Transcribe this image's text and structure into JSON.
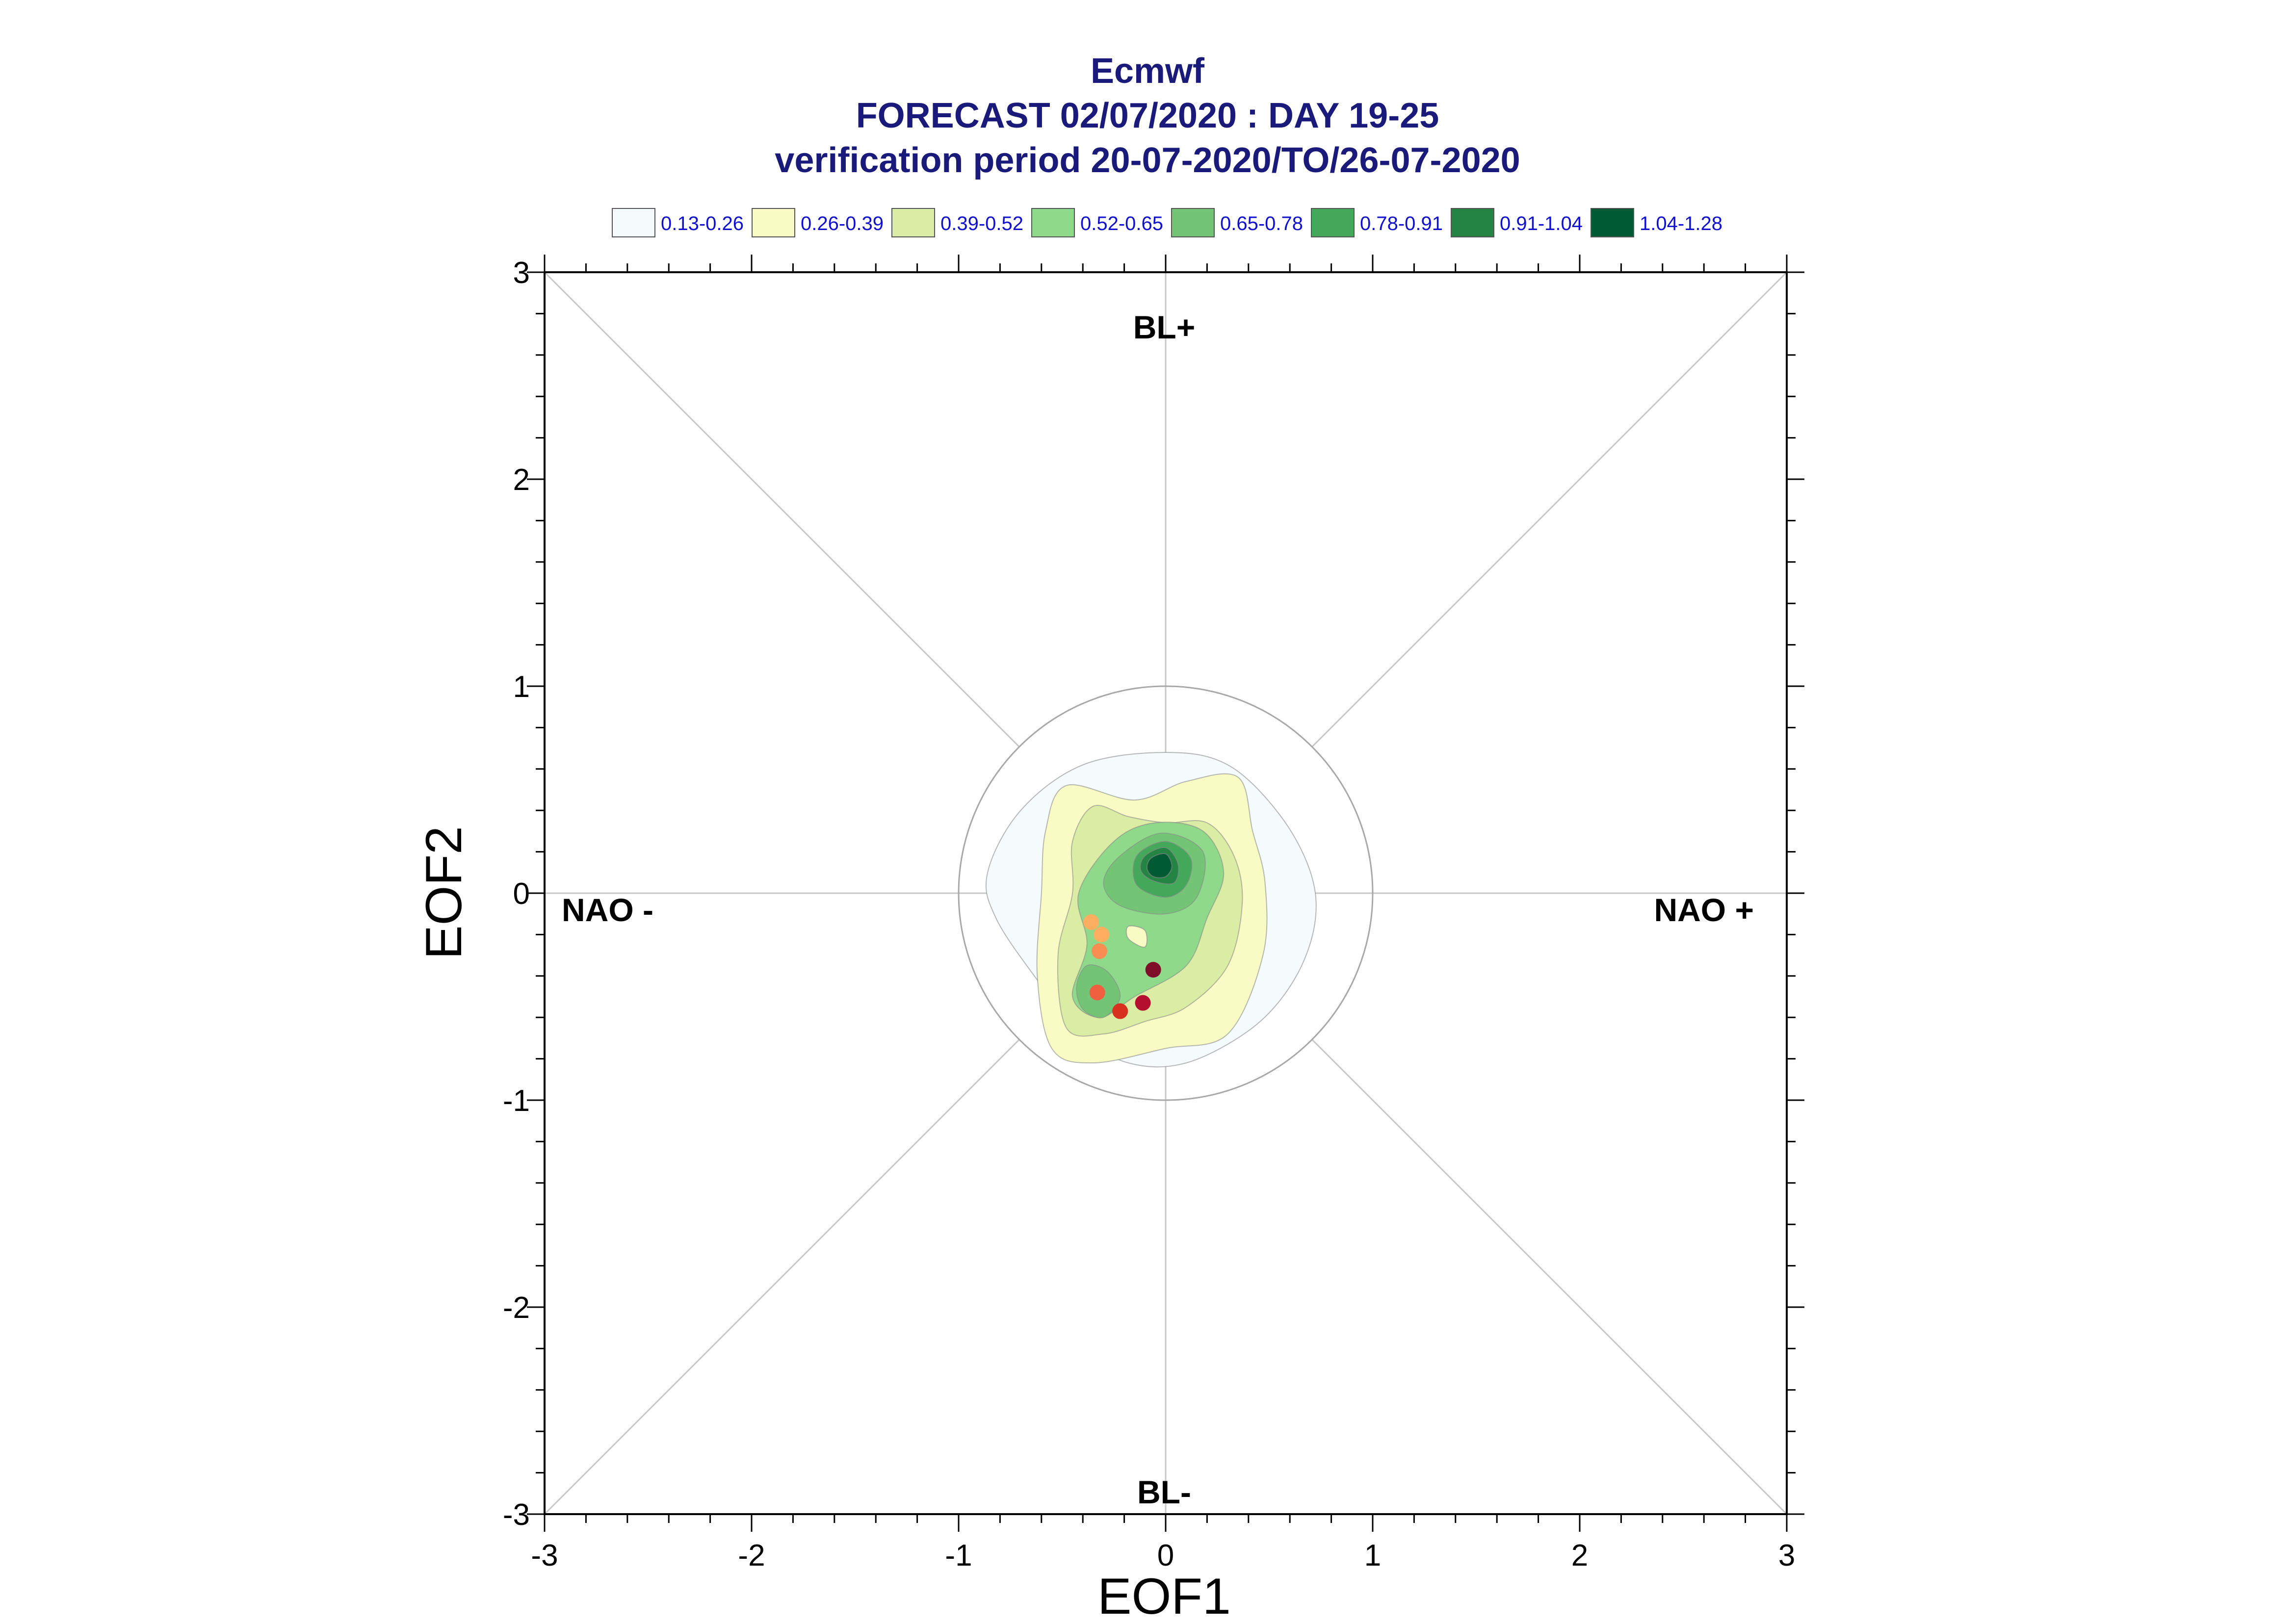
{
  "title": {
    "line1": "Ecmwf",
    "line2": "FORECAST 02/07/2020 : DAY 19-25",
    "line3": "verification period 20-07-2020/TO/26-07-2020"
  },
  "legend": [
    {
      "label": "0.13-0.26",
      "color": "#f5fafd"
    },
    {
      "label": "0.26-0.39",
      "color": "#f9fbc4"
    },
    {
      "label": "0.39-0.52",
      "color": "#dbeda4"
    },
    {
      "label": "0.52-0.65",
      "color": "#8ed98a"
    },
    {
      "label": "0.65-0.78",
      "color": "#73c575"
    },
    {
      "label": "0.78-0.91",
      "color": "#44a85a"
    },
    {
      "label": "0.91-1.04",
      "color": "#238443"
    },
    {
      "label": "1.04-1.28",
      "color": "#005a32"
    }
  ],
  "chart_data": {
    "type": "scatter",
    "xlabel": "EOF1",
    "ylabel": "EOF2",
    "xlim": [
      -3,
      3
    ],
    "ylim": [
      -3,
      3
    ],
    "xticks": [
      "-3",
      "-2",
      "-1",
      "0",
      "1",
      "2",
      "3"
    ],
    "yticks": [
      "-3",
      "-2",
      "-1",
      "0",
      "1",
      "2",
      "3"
    ],
    "regime_labels": {
      "top": "BL+",
      "bottom": "BL-",
      "left": "NAO -",
      "right": "NAO +"
    },
    "reference_circle_radius": 1.0,
    "density_contours": [
      {
        "level": "0.13-0.26",
        "points": [
          [
            0.0,
            0.68
          ],
          [
            0.3,
            0.62
          ],
          [
            0.55,
            0.38
          ],
          [
            0.7,
            0.1
          ],
          [
            0.72,
            -0.15
          ],
          [
            0.62,
            -0.42
          ],
          [
            0.42,
            -0.65
          ],
          [
            0.1,
            -0.82
          ],
          [
            -0.18,
            -0.82
          ],
          [
            -0.42,
            -0.68
          ],
          [
            -0.62,
            -0.42
          ],
          [
            -0.82,
            -0.12
          ],
          [
            -0.86,
            0.1
          ],
          [
            -0.7,
            0.4
          ],
          [
            -0.4,
            0.62
          ]
        ]
      },
      {
        "level": "0.26-0.39",
        "points": [
          [
            -0.48,
            0.52
          ],
          [
            -0.15,
            0.45
          ],
          [
            0.1,
            0.54
          ],
          [
            0.35,
            0.56
          ],
          [
            0.42,
            0.3
          ],
          [
            0.48,
            0.05
          ],
          [
            0.47,
            -0.3
          ],
          [
            0.3,
            -0.68
          ],
          [
            0.0,
            -0.75
          ],
          [
            -0.35,
            -0.82
          ],
          [
            -0.55,
            -0.75
          ],
          [
            -0.62,
            -0.4
          ],
          [
            -0.6,
            0.0
          ],
          [
            -0.58,
            0.3
          ]
        ]
      },
      {
        "level": "0.39-0.52",
        "points": [
          [
            -0.35,
            0.42
          ],
          [
            -0.18,
            0.37
          ],
          [
            0.0,
            0.34
          ],
          [
            0.2,
            0.34
          ],
          [
            0.33,
            0.18
          ],
          [
            0.37,
            -0.05
          ],
          [
            0.3,
            -0.35
          ],
          [
            0.1,
            -0.55
          ],
          [
            -0.1,
            -0.62
          ],
          [
            -0.3,
            -0.68
          ],
          [
            -0.48,
            -0.65
          ],
          [
            -0.52,
            -0.3
          ],
          [
            -0.45,
            0.0
          ],
          [
            -0.45,
            0.25
          ]
        ]
      },
      {
        "level": "0.52-0.65",
        "points": [
          [
            -0.25,
            0.25
          ],
          [
            -0.05,
            0.34
          ],
          [
            0.18,
            0.3
          ],
          [
            0.28,
            0.1
          ],
          [
            0.2,
            -0.12
          ],
          [
            0.1,
            -0.35
          ],
          [
            -0.15,
            -0.5
          ],
          [
            -0.32,
            -0.6
          ],
          [
            -0.45,
            -0.5
          ],
          [
            -0.38,
            -0.25
          ],
          [
            -0.42,
            0.0
          ]
        ]
      },
      {
        "level": "0.65-0.78",
        "points": [
          [
            -0.22,
            0.18
          ],
          [
            -0.02,
            0.29
          ],
          [
            0.18,
            0.2
          ],
          [
            0.15,
            -0.02
          ],
          [
            0.0,
            -0.1
          ],
          [
            -0.22,
            -0.06
          ],
          [
            -0.3,
            0.05
          ]
        ]
      },
      {
        "level": "0.65-0.78",
        "points": [
          [
            -0.38,
            -0.35
          ],
          [
            -0.28,
            -0.38
          ],
          [
            -0.22,
            -0.5
          ],
          [
            -0.3,
            -0.6
          ],
          [
            -0.4,
            -0.56
          ],
          [
            -0.43,
            -0.45
          ]
        ]
      },
      {
        "level": "0.78-0.91",
        "points": [
          [
            -0.14,
            0.18
          ],
          [
            0.0,
            0.25
          ],
          [
            0.12,
            0.17
          ],
          [
            0.1,
            0.04
          ],
          [
            0.0,
            -0.02
          ],
          [
            -0.14,
            0.04
          ]
        ]
      },
      {
        "level": "0.91-1.04",
        "points": [
          [
            -0.1,
            0.18
          ],
          [
            0.0,
            0.22
          ],
          [
            0.06,
            0.14
          ],
          [
            0.04,
            0.05
          ],
          [
            -0.06,
            0.06
          ],
          [
            -0.12,
            0.11
          ]
        ]
      },
      {
        "level": "1.04-1.28",
        "points": [
          [
            -0.07,
            0.17
          ],
          [
            0.0,
            0.19
          ],
          [
            0.03,
            0.13
          ],
          [
            0.0,
            0.08
          ],
          [
            -0.06,
            0.08
          ],
          [
            -0.09,
            0.12
          ]
        ]
      }
    ],
    "hole": [
      [
        -0.18,
        -0.16
      ],
      [
        -0.1,
        -0.18
      ],
      [
        -0.1,
        -0.26
      ],
      [
        -0.18,
        -0.22
      ]
    ],
    "points": [
      {
        "x": -0.36,
        "y": -0.14,
        "color": "#fdae61"
      },
      {
        "x": -0.31,
        "y": -0.2,
        "color": "#fdae61"
      },
      {
        "x": -0.32,
        "y": -0.28,
        "color": "#f98e52"
      },
      {
        "x": -0.33,
        "y": -0.48,
        "color": "#f06040"
      },
      {
        "x": -0.22,
        "y": -0.57,
        "color": "#d7301f"
      },
      {
        "x": -0.11,
        "y": -0.53,
        "color": "#b30f2e"
      },
      {
        "x": -0.06,
        "y": -0.37,
        "color": "#7f0e2a"
      }
    ]
  }
}
